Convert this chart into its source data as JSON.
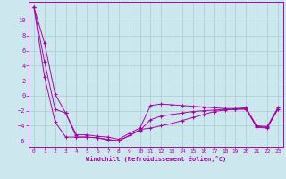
{
  "xlabel": "Windchill (Refroidissement éolien,°C)",
  "background_color": "#cce8ee",
  "grid_color": "#aad4d8",
  "line_color": "#aa00aa",
  "xlim": [
    -0.5,
    23.5
  ],
  "ylim": [
    -6.8,
    12.5
  ],
  "xticks": [
    0,
    1,
    2,
    3,
    4,
    5,
    6,
    7,
    8,
    9,
    10,
    11,
    12,
    13,
    14,
    15,
    16,
    17,
    18,
    19,
    20,
    21,
    22,
    23
  ],
  "yticks": [
    -6,
    -4,
    -2,
    0,
    2,
    4,
    6,
    8,
    10
  ],
  "line1_x": [
    0,
    1,
    2,
    3,
    4,
    5,
    6,
    7,
    8,
    9,
    10,
    11,
    12,
    13,
    14,
    15,
    16,
    17,
    18,
    19,
    20,
    21,
    22,
    23
  ],
  "line1_y": [
    11.8,
    7.0,
    0.2,
    -2.3,
    -5.2,
    -5.2,
    -5.4,
    -5.5,
    -5.8,
    -5.0,
    -4.3,
    -1.3,
    -1.1,
    -1.2,
    -1.3,
    -1.4,
    -1.5,
    -1.6,
    -1.7,
    -1.7,
    -1.6,
    -4.0,
    -4.1,
    -1.6
  ],
  "line2_x": [
    0,
    1,
    2,
    3,
    4,
    5,
    6,
    7,
    8,
    9,
    10,
    11,
    12,
    13,
    14,
    15,
    16,
    17,
    18,
    19,
    20,
    21,
    22,
    23
  ],
  "line2_y": [
    11.8,
    4.5,
    -1.8,
    -2.3,
    -5.5,
    -5.5,
    -5.6,
    -5.9,
    -6.0,
    -5.3,
    -4.6,
    -3.2,
    -2.7,
    -2.5,
    -2.3,
    -2.1,
    -2.0,
    -1.9,
    -1.8,
    -1.8,
    -1.8,
    -4.1,
    -4.2,
    -1.8
  ],
  "line3_x": [
    0,
    1,
    2,
    3,
    4,
    5,
    6,
    7,
    8,
    9,
    10,
    11,
    12,
    13,
    14,
    15,
    16,
    17,
    18,
    19,
    20,
    21,
    22,
    23
  ],
  "line3_y": [
    11.8,
    2.5,
    -3.5,
    -5.5,
    -5.5,
    -5.5,
    -5.6,
    -5.8,
    -6.0,
    -5.3,
    -4.5,
    -4.3,
    -4.0,
    -3.7,
    -3.3,
    -2.9,
    -2.5,
    -2.1,
    -1.9,
    -1.8,
    -1.7,
    -4.2,
    -4.3,
    -1.8
  ]
}
